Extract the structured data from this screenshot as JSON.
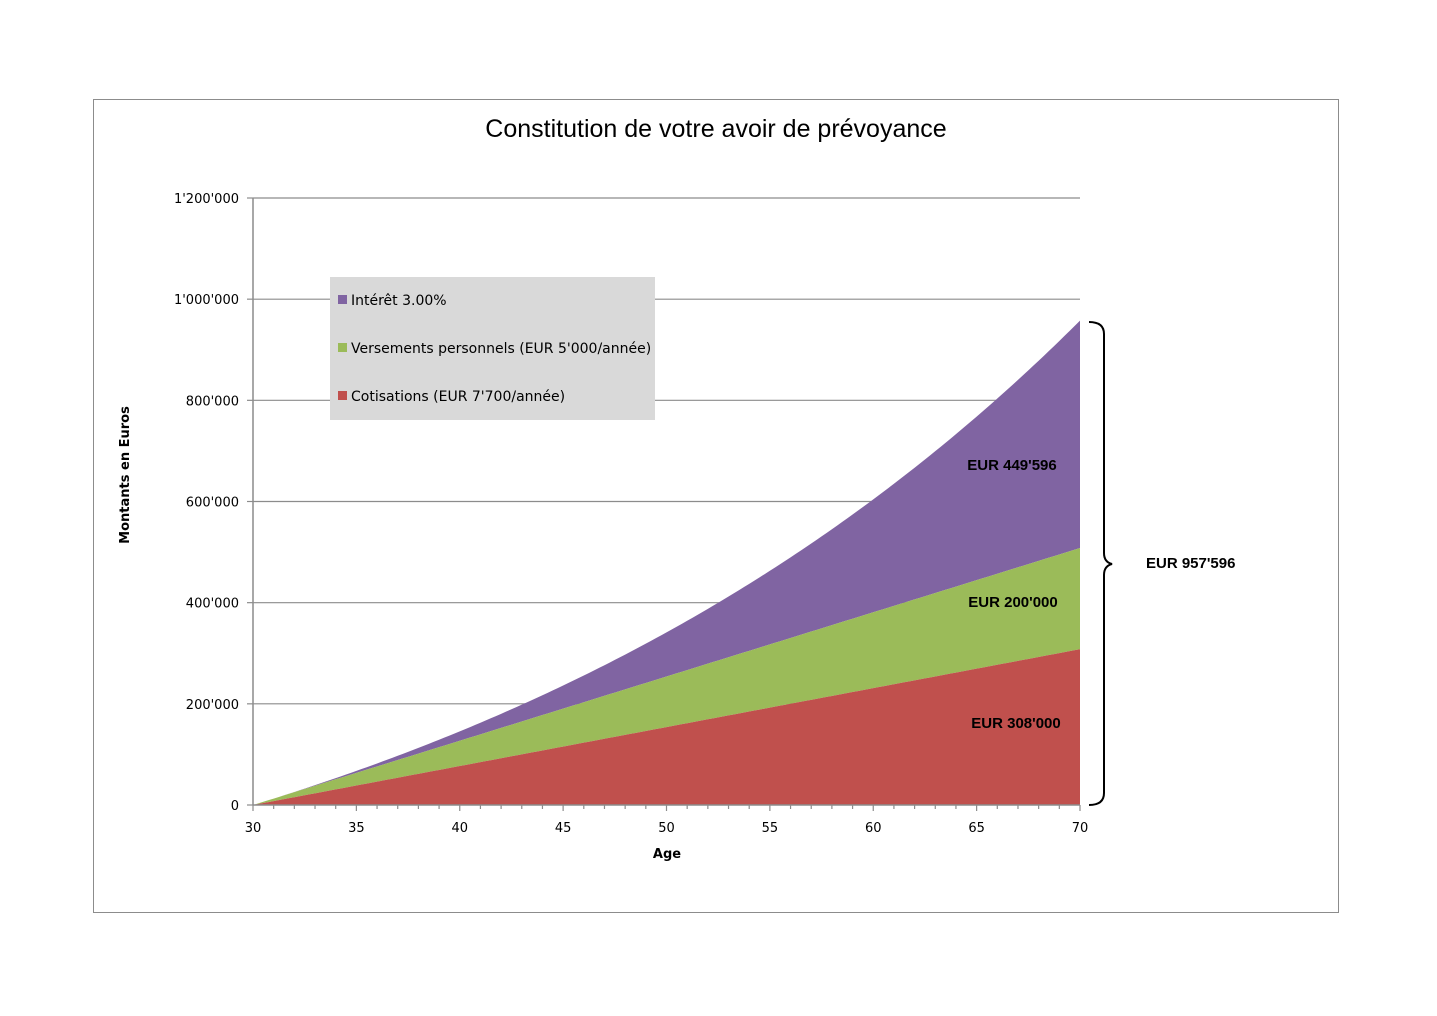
{
  "chart_data": {
    "type": "area",
    "stacked": true,
    "title": "Constitution de votre avoir de prévoyance",
    "xlabel": "Age",
    "ylabel": "Montants en Euros",
    "xlim": [
      30,
      70
    ],
    "ylim": [
      0,
      1200000
    ],
    "x_ticks": [
      30,
      35,
      40,
      45,
      50,
      55,
      60,
      65,
      70
    ],
    "x_tick_labels": [
      "30",
      "35",
      "40",
      "45",
      "50",
      "55",
      "60",
      "65",
      "70"
    ],
    "y_ticks": [
      0,
      200000,
      400000,
      600000,
      800000,
      1000000,
      1200000
    ],
    "y_tick_labels": [
      "0",
      "200'000",
      "400'000",
      "600'000",
      "800'000",
      "1'000'000",
      "1'200'000"
    ],
    "grid": true,
    "legend_position": "upper-left",
    "series": [
      {
        "name": "Cotisations (EUR 7'700/année)",
        "color": "#c0504d",
        "annual_amount": 7700,
        "final_value": 308000,
        "data_label": "EUR 308'000"
      },
      {
        "name": "Versements personnels (EUR 5'000/année)",
        "color": "#9bbb59",
        "annual_amount": 5000,
        "final_value": 200000,
        "data_label": "EUR 200'000"
      },
      {
        "name": "Intérêt 3.00%",
        "color": "#8064a2",
        "rate": 0.03,
        "final_value": 449596,
        "data_label": "EUR 449'596"
      }
    ],
    "total_label": "EUR 957'596"
  }
}
